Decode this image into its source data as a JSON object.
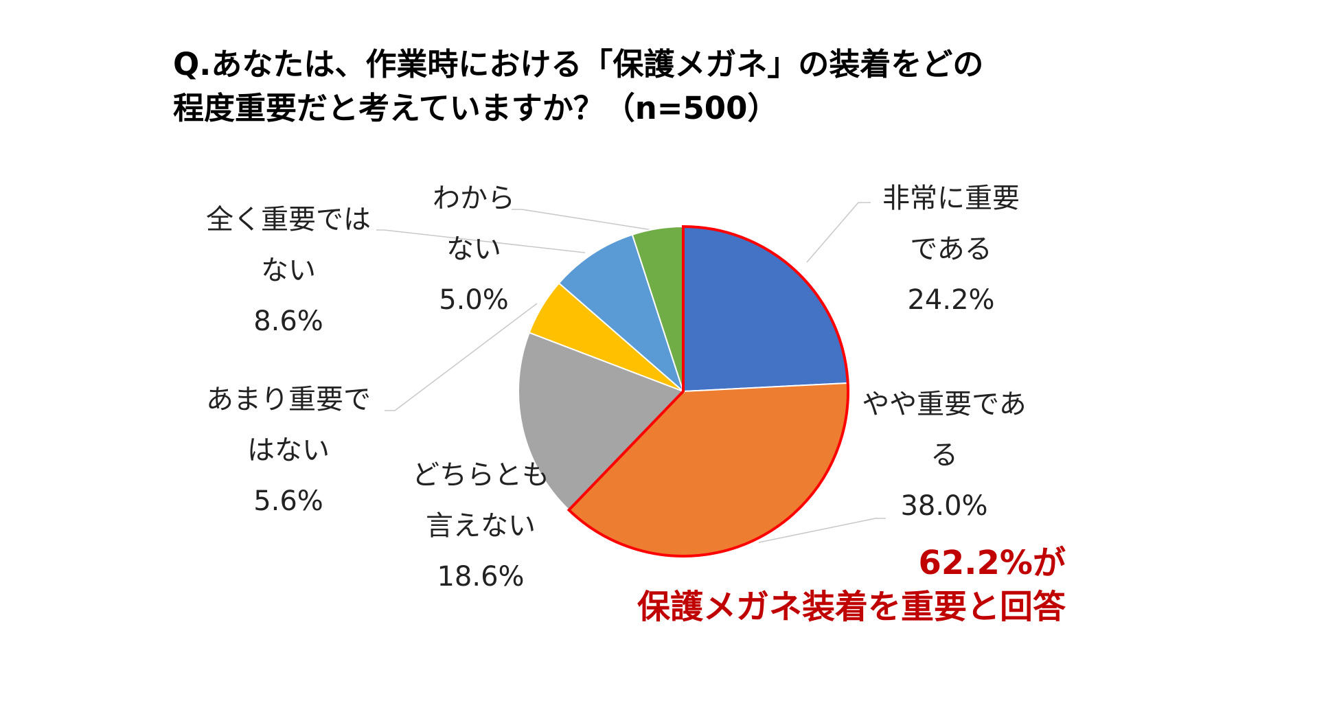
{
  "chart_data": {
    "type": "pie",
    "title_lines": [
      "Q.あなたは、作業時における「保護メガネ」の装着をどの",
      "程度重要だと考えていますか？（n=500）"
    ],
    "start_angle_deg": 0,
    "direction": "clockwise",
    "slices": [
      {
        "id": "very-important",
        "label_lines": [
          "非常に重要",
          "である"
        ],
        "value": 24.2,
        "value_text": "24.2%",
        "color": "#4472C4",
        "highlighted": true
      },
      {
        "id": "somewhat-important",
        "label_lines": [
          "やや重要であ",
          "る"
        ],
        "value": 38.0,
        "value_text": "38.0%",
        "color": "#ED7D31",
        "highlighted": true
      },
      {
        "id": "neither",
        "label_lines": [
          "どちらとも",
          "言えない"
        ],
        "value": 18.6,
        "value_text": "18.6%",
        "color": "#A5A5A5",
        "highlighted": false
      },
      {
        "id": "not-very-important",
        "label_lines": [
          "あまり重要で",
          "はない"
        ],
        "value": 5.6,
        "value_text": "5.6%",
        "color": "#FFC000",
        "highlighted": false
      },
      {
        "id": "not-at-all-important",
        "label_lines": [
          "全く重要では",
          "ない"
        ],
        "value": 8.6,
        "value_text": "8.6%",
        "color": "#5B9BD5",
        "highlighted": false
      },
      {
        "id": "dont-know",
        "label_lines": [
          "わから",
          "ない"
        ],
        "value": 5.0,
        "value_text": "5.0%",
        "color": "#70AD47",
        "highlighted": false
      }
    ],
    "highlight_color": "#FF0000",
    "legend": "none",
    "callout_lines": [
      "62.2%が",
      "保護メガネ装着を重要と回答"
    ],
    "callout_color": "#C00000"
  }
}
